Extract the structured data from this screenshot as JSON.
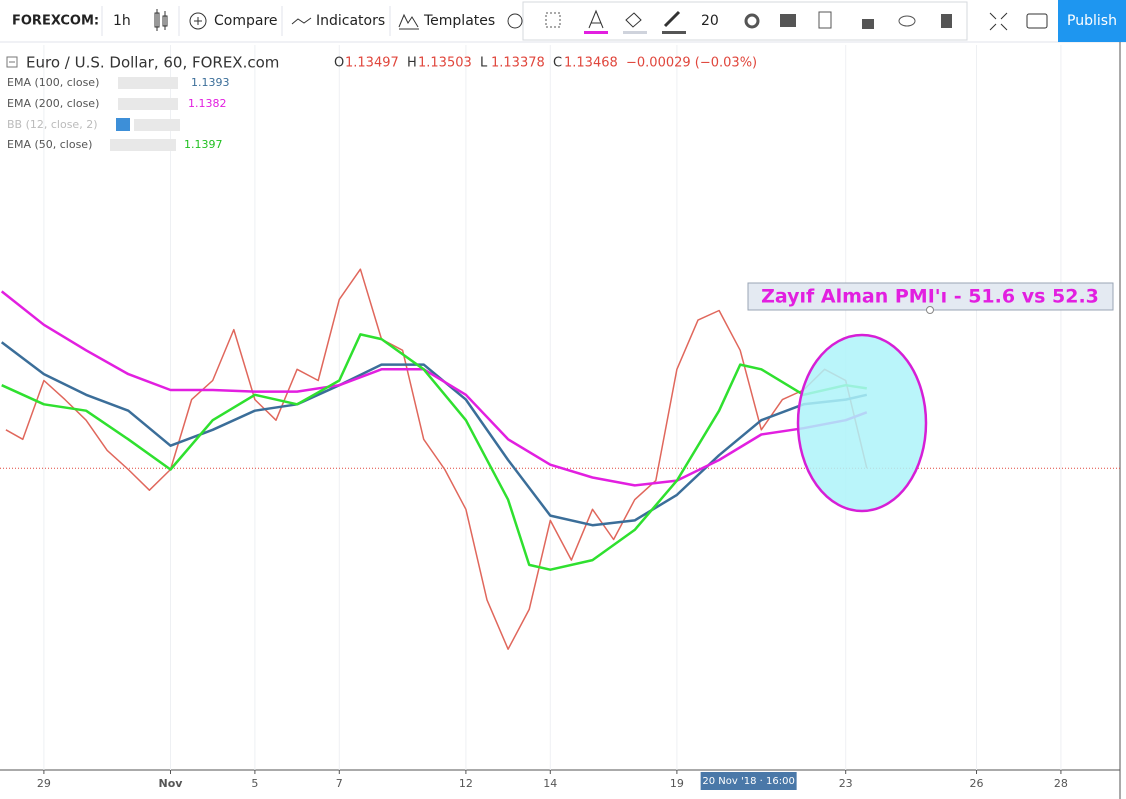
{
  "toolbar": {
    "symbol": "FOREXCOM:",
    "interval": "1h",
    "compare": "Compare",
    "indicators": "Indicators",
    "templates": "Templates",
    "font_size": 20,
    "publish": "Publish"
  },
  "chart_data": {
    "type": "line",
    "title": "Euro / U.S. Dollar, 60, FOREX.com",
    "ohlc": [
      {
        "label": "O",
        "value": 1.13497
      },
      {
        "label": "H",
        "value": 1.13503
      },
      {
        "label": "L",
        "value": 1.13378
      },
      {
        "label": "C",
        "value": 1.13468
      }
    ],
    "change": "−0.00029 (−0.03%)",
    "bb_label": "BB (12, close, 2)",
    "annotation": "Zayıf Alman PMI'ı - 51.6 vs 52.3",
    "crosshair": {
      "value": 16.7,
      "label": "20 Nov '18 · 16:00"
    },
    "xlim": [
      -1.04,
      25.5
    ],
    "ylim": [
      1.1157,
      1.1613
    ],
    "xticks": [
      {
        "value": 0,
        "label": "29"
      },
      {
        "value": 3,
        "label": "Nov"
      },
      5,
      7,
      {
        "value": 10,
        "label": "12"
      },
      {
        "value": 12,
        "label": "14"
      },
      {
        "value": 15,
        "label": "19"
      },
      {
        "value": 19,
        "label": "23"
      },
      {
        "value": 22.1,
        "label": "26"
      },
      {
        "value": 24.1,
        "label": "28"
      }
    ],
    "series": [
      {
        "name": "Euro / U.S. Dollar, 60, FOREX.com",
        "color": "#e0675c",
        "x": [
          -0.9,
          -0.5,
          0,
          0.5,
          1,
          1.5,
          2,
          2.5,
          3,
          3.5,
          4,
          4.5,
          5,
          5.5,
          6,
          6.5,
          7,
          7.5,
          8,
          8.5,
          9,
          9.5,
          10,
          10.5,
          11,
          11.5,
          12,
          12.5,
          13,
          13.5,
          14,
          14.5,
          15,
          15.5,
          16,
          16.5,
          17,
          17.5,
          18,
          18.5,
          19,
          19.5
        ],
        "values": [
          1.1371,
          1.1365,
          1.1402,
          1.139,
          1.1377,
          1.1358,
          1.1346,
          1.1333,
          1.1346,
          1.139,
          1.1402,
          1.1434,
          1.139,
          1.1377,
          1.1409,
          1.1402,
          1.1453,
          1.1472,
          1.1428,
          1.1421,
          1.1365,
          1.1346,
          1.1321,
          1.1264,
          1.1233,
          1.1258,
          1.1314,
          1.1289,
          1.1321,
          1.1302,
          1.1327,
          1.1339,
          1.1409,
          1.144,
          1.1446,
          1.1421,
          1.1371,
          1.139,
          1.1396,
          1.1409,
          1.1402,
          1.13468
        ]
      },
      {
        "name": "EMA (100, close)",
        "color": "#3b6e99",
        "x": [
          -1,
          0,
          1,
          2,
          3,
          4,
          5,
          6,
          7,
          8,
          9,
          10,
          11,
          12,
          13,
          14,
          15,
          16,
          17,
          18,
          19,
          19.5
        ],
        "values": [
          1.1426,
          1.1406,
          1.1393,
          1.1383,
          1.1361,
          1.1371,
          1.1383,
          1.1387,
          1.1399,
          1.1412,
          1.1412,
          1.139,
          1.1352,
          1.1317,
          1.1311,
          1.1314,
          1.133,
          1.1355,
          1.1377,
          1.1387,
          1.139,
          1.1393
        ]
      },
      {
        "name": "EMA (200, close)",
        "color": "#e21fe0",
        "x": [
          -1,
          0,
          1,
          2,
          3,
          4,
          5,
          6,
          7,
          8,
          9,
          10,
          11,
          12,
          13,
          14,
          15,
          16,
          17,
          18,
          19,
          19.5
        ],
        "values": [
          1.1458,
          1.1437,
          1.1421,
          1.1406,
          1.1396,
          1.1396,
          1.1395,
          1.1395,
          1.1399,
          1.1409,
          1.1409,
          1.1393,
          1.1365,
          1.1349,
          1.1341,
          1.1336,
          1.1339,
          1.1352,
          1.1368,
          1.1372,
          1.1377,
          1.1382
        ]
      },
      {
        "name": "EMA (50, close)",
        "color": "#2fe02f",
        "x": [
          -1,
          0,
          1,
          2,
          3,
          4,
          5,
          6,
          7,
          7.5,
          8,
          9,
          10,
          11,
          11.5,
          12,
          13,
          14,
          15,
          16,
          16.5,
          17,
          18,
          19,
          19.5
        ],
        "values": [
          1.1399,
          1.1387,
          1.1383,
          1.1365,
          1.1346,
          1.1377,
          1.1393,
          1.1387,
          1.1402,
          1.1431,
          1.1428,
          1.1409,
          1.1377,
          1.1327,
          1.1286,
          1.1283,
          1.1289,
          1.1308,
          1.1339,
          1.1383,
          1.1412,
          1.1409,
          1.1393,
          1.1399,
          1.1397
        ]
      }
    ]
  }
}
